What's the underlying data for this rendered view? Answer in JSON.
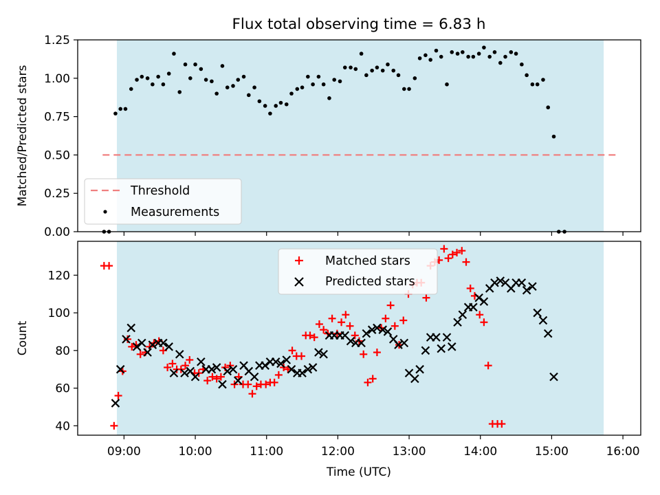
{
  "title": "Flux total observing time = 6.83 h",
  "colors": {
    "shade": "#add8e6",
    "threshold": "#f08080",
    "matched": "#ff0000",
    "predicted": "#000000",
    "measurement": "#000000"
  },
  "chart_data": [
    {
      "type": "scatter",
      "ylabel": "Matched/Predicted stars",
      "xlim": [
        8.35,
        16.25
      ],
      "ylim": [
        0,
        1.25
      ],
      "yticks": [
        0,
        0.25,
        0.5,
        0.75,
        1.0,
        1.25
      ],
      "ytick_labels": [
        "0.00",
        "0.25",
        "0.50",
        "0.75",
        "1.00",
        "1.25"
      ],
      "shaded_span": [
        8.9,
        15.73
      ],
      "threshold": {
        "label": "Threshold",
        "value": 0.5,
        "x_range": [
          8.7,
          15.9
        ]
      },
      "legend": {
        "location": "lower-left",
        "entries": [
          "Threshold",
          "Measurements"
        ]
      },
      "series": [
        {
          "name": "Measurements",
          "points": [
            [
              8.72,
              0.0
            ],
            [
              8.79,
              0.0
            ],
            [
              8.88,
              0.77
            ],
            [
              8.95,
              0.8
            ],
            [
              9.02,
              0.8
            ],
            [
              9.1,
              0.93
            ],
            [
              9.18,
              0.99
            ],
            [
              9.25,
              1.01
            ],
            [
              9.33,
              1.0
            ],
            [
              9.4,
              0.96
            ],
            [
              9.48,
              1.01
            ],
            [
              9.55,
              0.96
            ],
            [
              9.63,
              1.03
            ],
            [
              9.7,
              1.16
            ],
            [
              9.78,
              0.91
            ],
            [
              9.86,
              1.09
            ],
            [
              9.93,
              1.0
            ],
            [
              10.0,
              1.09
            ],
            [
              10.08,
              1.06
            ],
            [
              10.15,
              0.99
            ],
            [
              10.23,
              0.98
            ],
            [
              10.3,
              0.9
            ],
            [
              10.38,
              1.08
            ],
            [
              10.45,
              0.94
            ],
            [
              10.53,
              0.95
            ],
            [
              10.6,
              0.99
            ],
            [
              10.68,
              1.01
            ],
            [
              10.75,
              0.89
            ],
            [
              10.83,
              0.94
            ],
            [
              10.9,
              0.85
            ],
            [
              10.98,
              0.82
            ],
            [
              11.05,
              0.77
            ],
            [
              11.13,
              0.82
            ],
            [
              11.2,
              0.84
            ],
            [
              11.28,
              0.83
            ],
            [
              11.35,
              0.9
            ],
            [
              11.43,
              0.93
            ],
            [
              11.5,
              0.94
            ],
            [
              11.58,
              1.01
            ],
            [
              11.65,
              0.96
            ],
            [
              11.73,
              1.01
            ],
            [
              11.8,
              0.96
            ],
            [
              11.88,
              0.87
            ],
            [
              11.95,
              0.99
            ],
            [
              12.03,
              0.98
            ],
            [
              12.1,
              1.07
            ],
            [
              12.18,
              1.07
            ],
            [
              12.25,
              1.06
            ],
            [
              12.33,
              1.16
            ],
            [
              12.4,
              1.02
            ],
            [
              12.48,
              1.05
            ],
            [
              12.55,
              1.07
            ],
            [
              12.63,
              1.05
            ],
            [
              12.7,
              1.09
            ],
            [
              12.78,
              1.05
            ],
            [
              12.85,
              1.02
            ],
            [
              12.93,
              0.93
            ],
            [
              13.0,
              0.93
            ],
            [
              13.08,
              1.0
            ],
            [
              13.15,
              1.13
            ],
            [
              13.23,
              1.15
            ],
            [
              13.3,
              1.12
            ],
            [
              13.38,
              1.18
            ],
            [
              13.45,
              1.14
            ],
            [
              13.53,
              0.96
            ],
            [
              13.6,
              1.17
            ],
            [
              13.68,
              1.16
            ],
            [
              13.75,
              1.17
            ],
            [
              13.83,
              1.14
            ],
            [
              13.9,
              1.14
            ],
            [
              13.98,
              1.16
            ],
            [
              14.05,
              1.2
            ],
            [
              14.13,
              1.14
            ],
            [
              14.2,
              1.17
            ],
            [
              14.28,
              1.1
            ],
            [
              14.35,
              1.14
            ],
            [
              14.43,
              1.17
            ],
            [
              14.5,
              1.16
            ],
            [
              14.58,
              1.09
            ],
            [
              14.65,
              1.02
            ],
            [
              14.73,
              0.96
            ],
            [
              14.8,
              0.96
            ],
            [
              14.88,
              0.99
            ],
            [
              14.95,
              0.81
            ],
            [
              15.03,
              0.62
            ],
            [
              15.1,
              0.0
            ],
            [
              15.18,
              0.0
            ]
          ]
        }
      ]
    },
    {
      "type": "scatter",
      "xlabel": "Time (UTC)",
      "ylabel": "Count",
      "xlim": [
        8.35,
        16.25
      ],
      "ylim": [
        35,
        138
      ],
      "yticks": [
        40,
        60,
        80,
        100,
        120
      ],
      "ytick_labels": [
        "40",
        "60",
        "80",
        "100",
        "120"
      ],
      "xticks": [
        9,
        10,
        11,
        12,
        13,
        14,
        15,
        16
      ],
      "xtick_labels": [
        "09:00",
        "10:00",
        "11:00",
        "12:00",
        "13:00",
        "14:00",
        "15:00",
        "16:00"
      ],
      "shaded_span": [
        8.9,
        15.73
      ],
      "legend": {
        "location": "upper-center",
        "entries": [
          "Matched stars",
          "Predicted stars"
        ]
      },
      "series": [
        {
          "name": "Matched stars",
          "marker": "+",
          "points": [
            [
              8.72,
              125
            ],
            [
              8.79,
              125
            ],
            [
              8.86,
              40
            ],
            [
              8.92,
              56
            ],
            [
              8.98,
              69
            ],
            [
              9.05,
              86
            ],
            [
              9.11,
              82
            ],
            [
              9.17,
              83
            ],
            [
              9.23,
              78
            ],
            [
              9.3,
              79
            ],
            [
              9.36,
              82
            ],
            [
              9.42,
              84
            ],
            [
              9.49,
              85
            ],
            [
              9.55,
              80
            ],
            [
              9.61,
              71
            ],
            [
              9.68,
              73
            ],
            [
              9.74,
              70
            ],
            [
              9.8,
              70
            ],
            [
              9.86,
              72
            ],
            [
              9.92,
              75
            ],
            [
              9.99,
              68
            ],
            [
              10.05,
              68
            ],
            [
              10.11,
              70
            ],
            [
              10.17,
              64
            ],
            [
              10.24,
              66
            ],
            [
              10.3,
              65
            ],
            [
              10.36,
              66
            ],
            [
              10.42,
              71
            ],
            [
              10.49,
              72
            ],
            [
              10.55,
              62
            ],
            [
              10.61,
              66
            ],
            [
              10.67,
              62
            ],
            [
              10.74,
              62
            ],
            [
              10.8,
              57
            ],
            [
              10.86,
              61
            ],
            [
              10.92,
              62
            ],
            [
              10.99,
              62
            ],
            [
              11.05,
              63
            ],
            [
              11.11,
              63
            ],
            [
              11.17,
              67
            ],
            [
              11.24,
              71
            ],
            [
              11.3,
              70
            ],
            [
              11.36,
              80
            ],
            [
              11.42,
              77
            ],
            [
              11.49,
              77
            ],
            [
              11.55,
              88
            ],
            [
              11.61,
              88
            ],
            [
              11.67,
              87
            ],
            [
              11.74,
              94
            ],
            [
              11.8,
              91
            ],
            [
              11.86,
              89
            ],
            [
              11.92,
              97
            ],
            [
              11.99,
              89
            ],
            [
              12.05,
              95
            ],
            [
              12.11,
              99
            ],
            [
              12.17,
              93
            ],
            [
              12.24,
              88
            ],
            [
              12.3,
              85
            ],
            [
              12.36,
              78
            ],
            [
              12.42,
              63
            ],
            [
              12.49,
              65
            ],
            [
              12.55,
              79
            ],
            [
              12.61,
              92
            ],
            [
              12.67,
              97
            ],
            [
              12.74,
              104
            ],
            [
              12.8,
              93
            ],
            [
              12.86,
              83
            ],
            [
              12.92,
              96
            ],
            [
              12.99,
              110
            ],
            [
              13.05,
              115
            ],
            [
              13.11,
              116
            ],
            [
              13.17,
              116
            ],
            [
              13.24,
              108
            ],
            [
              13.3,
              125
            ],
            [
              13.36,
              127
            ],
            [
              13.42,
              128
            ],
            [
              13.49,
              134
            ],
            [
              13.55,
              129
            ],
            [
              13.61,
              131
            ],
            [
              13.67,
              132
            ],
            [
              13.74,
              133
            ],
            [
              13.8,
              127
            ],
            [
              13.86,
              113
            ],
            [
              13.92,
              109
            ],
            [
              13.99,
              99
            ],
            [
              14.05,
              95
            ],
            [
              14.11,
              72
            ],
            [
              14.17,
              41
            ],
            [
              14.24,
              41
            ],
            [
              14.3,
              41
            ]
          ]
        },
        {
          "name": "Predicted stars",
          "marker": "x",
          "points": [
            [
              8.88,
              52
            ],
            [
              8.95,
              70
            ],
            [
              9.03,
              86
            ],
            [
              9.1,
              92
            ],
            [
              9.18,
              82
            ],
            [
              9.25,
              84
            ],
            [
              9.33,
              79
            ],
            [
              9.4,
              83
            ],
            [
              9.48,
              84
            ],
            [
              9.55,
              84
            ],
            [
              9.63,
              82
            ],
            [
              9.7,
              68
            ],
            [
              9.78,
              78
            ],
            [
              9.85,
              68
            ],
            [
              9.93,
              69
            ],
            [
              10.0,
              66
            ],
            [
              10.08,
              74
            ],
            [
              10.15,
              70
            ],
            [
              10.23,
              70
            ],
            [
              10.3,
              71
            ],
            [
              10.38,
              62
            ],
            [
              10.45,
              69
            ],
            [
              10.53,
              70
            ],
            [
              10.6,
              64
            ],
            [
              10.68,
              72
            ],
            [
              10.75,
              69
            ],
            [
              10.83,
              66
            ],
            [
              10.9,
              72
            ],
            [
              10.98,
              72
            ],
            [
              11.05,
              74
            ],
            [
              11.13,
              74
            ],
            [
              11.2,
              73
            ],
            [
              11.28,
              75
            ],
            [
              11.35,
              70
            ],
            [
              11.43,
              68
            ],
            [
              11.5,
              68
            ],
            [
              11.58,
              70
            ],
            [
              11.65,
              71
            ],
            [
              11.73,
              79
            ],
            [
              11.8,
              78
            ],
            [
              11.88,
              88
            ],
            [
              11.95,
              88
            ],
            [
              12.03,
              88
            ],
            [
              12.1,
              88
            ],
            [
              12.18,
              85
            ],
            [
              12.25,
              84
            ],
            [
              12.33,
              84
            ],
            [
              12.4,
              89
            ],
            [
              12.48,
              91
            ],
            [
              12.55,
              92
            ],
            [
              12.63,
              91
            ],
            [
              12.7,
              90
            ],
            [
              12.78,
              86
            ],
            [
              12.85,
              83
            ],
            [
              12.93,
              84
            ],
            [
              13.0,
              68
            ],
            [
              13.08,
              65
            ],
            [
              13.15,
              70
            ],
            [
              13.23,
              80
            ],
            [
              13.3,
              87
            ],
            [
              13.38,
              87
            ],
            [
              13.45,
              81
            ],
            [
              13.53,
              87
            ],
            [
              13.6,
              82
            ],
            [
              13.68,
              95
            ],
            [
              13.75,
              99
            ],
            [
              13.83,
              103
            ],
            [
              13.9,
              103
            ],
            [
              13.98,
              108
            ],
            [
              14.05,
              106
            ],
            [
              14.13,
              113
            ],
            [
              14.2,
              116
            ],
            [
              14.28,
              117
            ],
            [
              14.35,
              116
            ],
            [
              14.43,
              113
            ],
            [
              14.5,
              116
            ],
            [
              14.58,
              116
            ],
            [
              14.65,
              112
            ],
            [
              14.73,
              114
            ],
            [
              14.8,
              100
            ],
            [
              14.88,
              96
            ],
            [
              14.95,
              89
            ],
            [
              15.03,
              66
            ]
          ]
        }
      ]
    }
  ]
}
